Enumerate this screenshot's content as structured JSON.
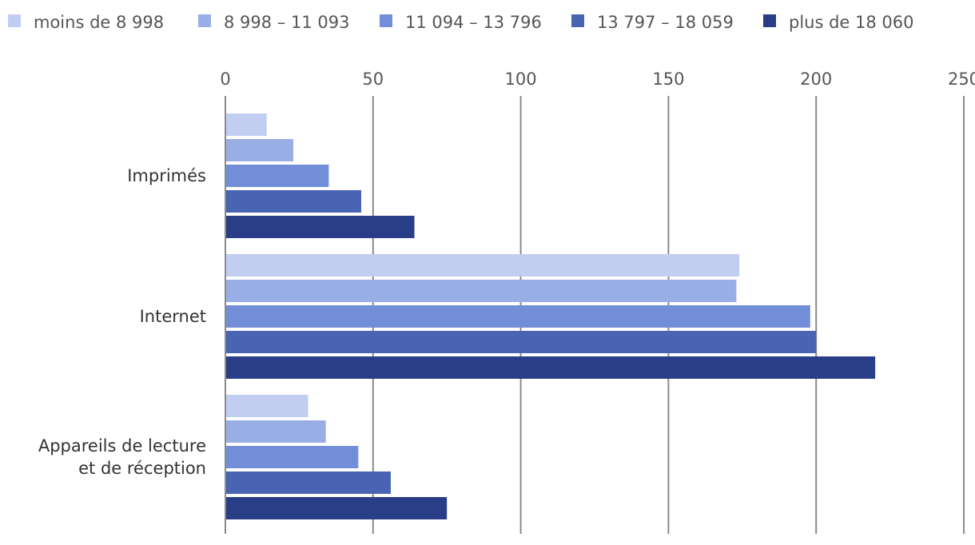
{
  "chart_data": {
    "type": "bar",
    "orientation": "horizontal",
    "categories": [
      "Imprimés",
      "Internet",
      "Appareils de lecture\net de réception"
    ],
    "series": [
      {
        "name": "moins de 8 998",
        "color": "#c2cdf2",
        "values": [
          14,
          174,
          28
        ]
      },
      {
        "name": "8 998 – 11 093",
        "color": "#9aaee6",
        "values": [
          23,
          173,
          34
        ]
      },
      {
        "name": "11 094 – 13 796",
        "color": "#728ed8",
        "values": [
          35,
          198,
          45
        ]
      },
      {
        "name": "13 797 – 18 059",
        "color": "#4a64b4",
        "values": [
          46,
          200,
          56
        ]
      },
      {
        "name": "plus de 18 060",
        "color": "#2a3e88",
        "values": [
          64,
          220,
          75
        ]
      }
    ],
    "xlim": [
      0,
      250
    ],
    "xticks": [
      0,
      50,
      100,
      150,
      200,
      250
    ],
    "grid": true,
    "legend_position": "top"
  }
}
